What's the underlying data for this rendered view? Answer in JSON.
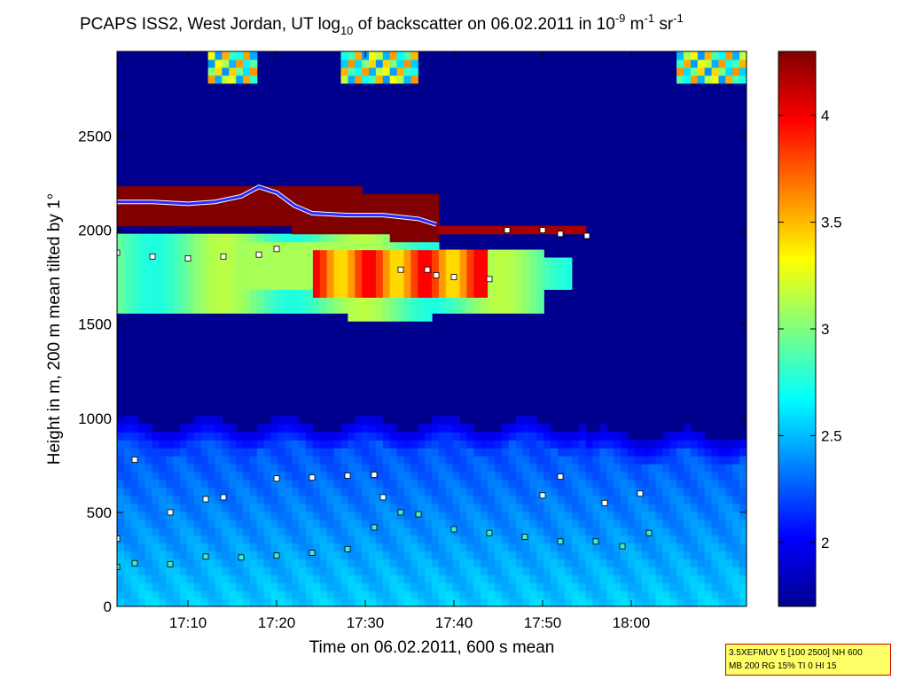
{
  "chart_data": {
    "type": "heatmap",
    "title": {
      "main": "PCAPS ISS2, West Jordan, UT log",
      "log_base": "10",
      "mid": " of backscatter on 06.02.2011 in 10",
      "exp1": "-9",
      "unit1": " m",
      "exp2": "-1",
      "unit2": " sr",
      "exp3": "-1"
    },
    "xlabel": "Time on 06.02.2011, 600 s mean",
    "ylabel": "Height in m, 200 m mean tilted by 1°",
    "xlim_minutes": [
      -8,
      63
    ],
    "x_ticks": [
      {
        "label": "17:10",
        "minutes": 0
      },
      {
        "label": "17:20",
        "minutes": 10
      },
      {
        "label": "17:30",
        "minutes": 20
      },
      {
        "label": "17:40",
        "minutes": 30
      },
      {
        "label": "17:50",
        "minutes": 40
      },
      {
        "label": "18:00",
        "minutes": 50
      }
    ],
    "ylim": [
      0,
      2950
    ],
    "y_ticks": [
      0,
      500,
      1000,
      1500,
      2000,
      2500
    ],
    "colorbar": {
      "range": [
        1.7,
        4.3
      ],
      "ticks": [
        "2",
        "2.5",
        "3",
        "3.5",
        "4"
      ],
      "tick_values": [
        2,
        2.5,
        3,
        3.5,
        4
      ],
      "colormap": "jet"
    },
    "colors": {
      "low": "#00008f",
      "high": "#800000",
      "marker_white": "#ffffff",
      "marker_red": "#cc1a00",
      "marker_cyan": "#4ee8c8",
      "cloud_line": "#2b2bff"
    },
    "series": [
      {
        "kind": "cloud_top_line",
        "points": [
          [
            -8,
            2150
          ],
          [
            -4,
            2150
          ],
          [
            0,
            2140
          ],
          [
            3,
            2150
          ],
          [
            6,
            2180
          ],
          [
            8,
            2230
          ],
          [
            10,
            2200
          ],
          [
            12,
            2130
          ],
          [
            14,
            2090
          ],
          [
            18,
            2080
          ],
          [
            22,
            2080
          ],
          [
            26,
            2060
          ],
          [
            28,
            2030
          ]
        ]
      },
      {
        "kind": "white_markers_upper",
        "points": [
          [
            -8,
            1880
          ],
          [
            -4,
            1860
          ],
          [
            0,
            1850
          ],
          [
            4,
            1860
          ],
          [
            8,
            1870
          ],
          [
            10,
            1900
          ],
          [
            24,
            1790
          ],
          [
            27,
            1790
          ],
          [
            28,
            1760
          ],
          [
            30,
            1750
          ],
          [
            34,
            1740
          ],
          [
            36,
            2000
          ],
          [
            40,
            2000
          ],
          [
            42,
            1980
          ],
          [
            45,
            1970
          ]
        ]
      },
      {
        "kind": "white_markers_mid",
        "points": [
          [
            -8,
            360
          ],
          [
            -6,
            780
          ],
          [
            -2,
            500
          ],
          [
            2,
            570
          ],
          [
            4,
            580
          ],
          [
            10,
            680
          ],
          [
            14,
            685
          ],
          [
            18,
            695
          ],
          [
            21,
            700
          ],
          [
            22,
            580
          ],
          [
            40,
            590
          ],
          [
            42,
            690
          ],
          [
            47,
            550
          ],
          [
            51,
            600
          ]
        ]
      },
      {
        "kind": "cyan_markers_lower",
        "points": [
          [
            -8,
            210
          ],
          [
            -6,
            230
          ],
          [
            -2,
            225
          ],
          [
            2,
            265
          ],
          [
            6,
            260
          ],
          [
            10,
            270
          ],
          [
            14,
            285
          ],
          [
            18,
            305
          ],
          [
            21,
            420
          ],
          [
            24,
            500
          ],
          [
            26,
            490
          ],
          [
            30,
            410
          ],
          [
            34,
            390
          ],
          [
            38,
            370
          ],
          [
            42,
            345
          ],
          [
            46,
            345
          ],
          [
            49,
            320
          ],
          [
            52,
            390
          ]
        ]
      }
    ]
  },
  "info_box": {
    "line1": "3.5XEFMUV 5 [100 2500] NH 600",
    "line2": "MB 200 RG 15% TI 0 HI 15"
  }
}
